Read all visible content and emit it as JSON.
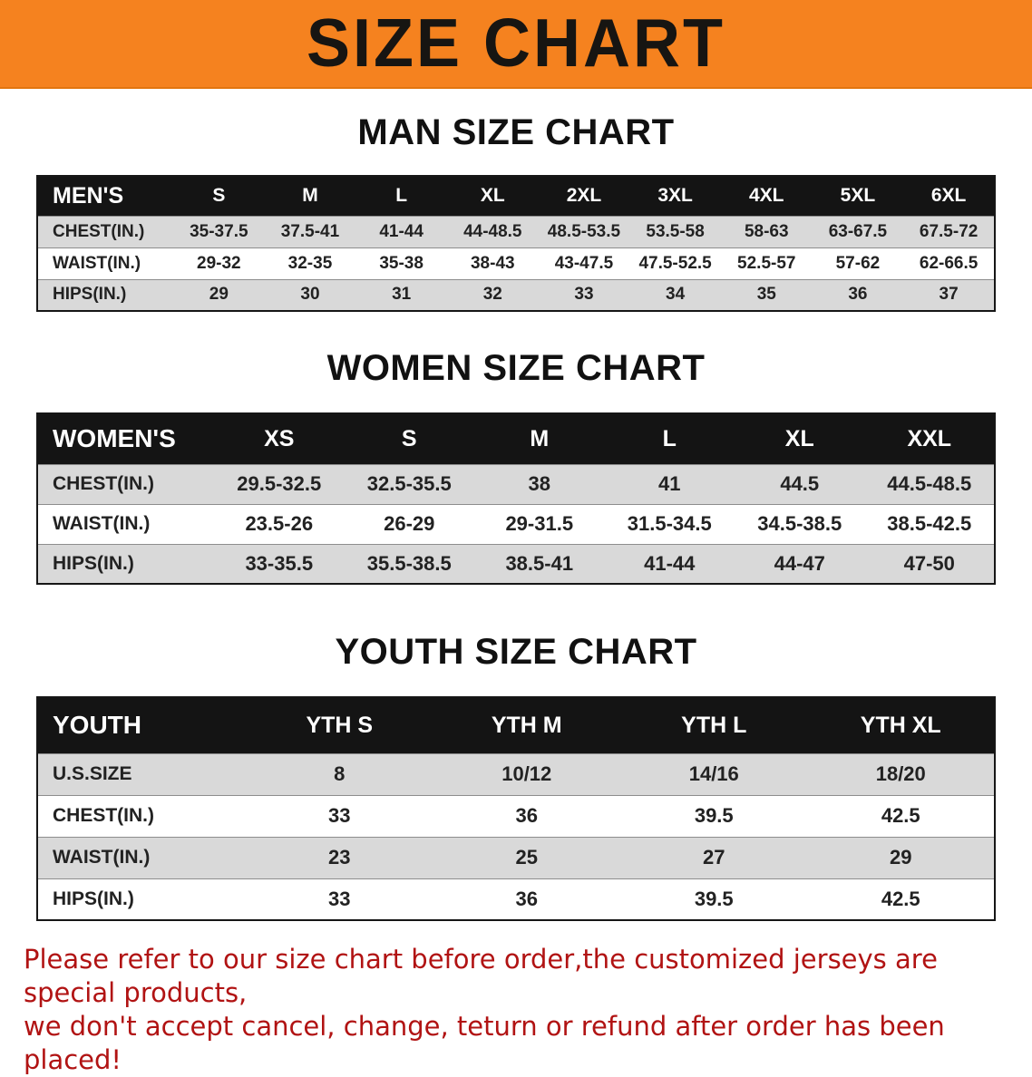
{
  "banner": {
    "title": "SIZE CHART",
    "bg_color": "#f5821f",
    "text_color": "#171512"
  },
  "sections": [
    {
      "heading": "MAN SIZE CHART",
      "table": {
        "header": [
          "MEN'S",
          "S",
          "M",
          "L",
          "XL",
          "2XL",
          "3XL",
          "4XL",
          "5XL",
          "6XL"
        ],
        "rows": [
          [
            "CHEST(IN.)",
            "35-37.5",
            "37.5-41",
            "41-44",
            "44-48.5",
            "48.5-53.5",
            "53.5-58",
            "58-63",
            "63-67.5",
            "67.5-72"
          ],
          [
            "WAIST(IN.)",
            "29-32",
            "32-35",
            "35-38",
            "38-43",
            "43-47.5",
            "47.5-52.5",
            "52.5-57",
            "57-62",
            "62-66.5"
          ],
          [
            "HIPS(IN.)",
            "29",
            "30",
            "31",
            "32",
            "33",
            "34",
            "35",
            "36",
            "37"
          ]
        ]
      }
    },
    {
      "heading": "WOMEN SIZE CHART",
      "table": {
        "header": [
          "WOMEN'S",
          "XS",
          "S",
          "M",
          "L",
          "XL",
          "XXL"
        ],
        "rows": [
          [
            "CHEST(IN.)",
            "29.5-32.5",
            "32.5-35.5",
            "38",
            "41",
            "44.5",
            "44.5-48.5"
          ],
          [
            "WAIST(IN.)",
            "23.5-26",
            "26-29",
            "29-31.5",
            "31.5-34.5",
            "34.5-38.5",
            "38.5-42.5"
          ],
          [
            "HIPS(IN.)",
            "33-35.5",
            "35.5-38.5",
            "38.5-41",
            "41-44",
            "44-47",
            "47-50"
          ]
        ]
      }
    },
    {
      "heading": "YOUTH SIZE CHART",
      "table": {
        "header": [
          "YOUTH",
          "YTH S",
          "YTH M",
          "YTH L",
          "YTH XL"
        ],
        "rows": [
          [
            "U.S.SIZE",
            "8",
            "10/12",
            "14/16",
            "18/20"
          ],
          [
            "CHEST(IN.)",
            "33",
            "36",
            "39.5",
            "42.5"
          ],
          [
            "WAIST(IN.)",
            "23",
            "25",
            "27",
            "29"
          ],
          [
            "HIPS(IN.)",
            "33",
            "36",
            "39.5",
            "42.5"
          ]
        ]
      }
    }
  ],
  "footer": {
    "line1": "Please refer to our size chart before order,the customized jerseys are special products,",
    "line2": "we don't accept cancel, change, teturn or refund after order has been placed!",
    "text_color": "#b11313"
  },
  "colors": {
    "header_row_bg": "#141414",
    "row_gray": "#d9d9d9",
    "row_white": "#ffffff"
  }
}
